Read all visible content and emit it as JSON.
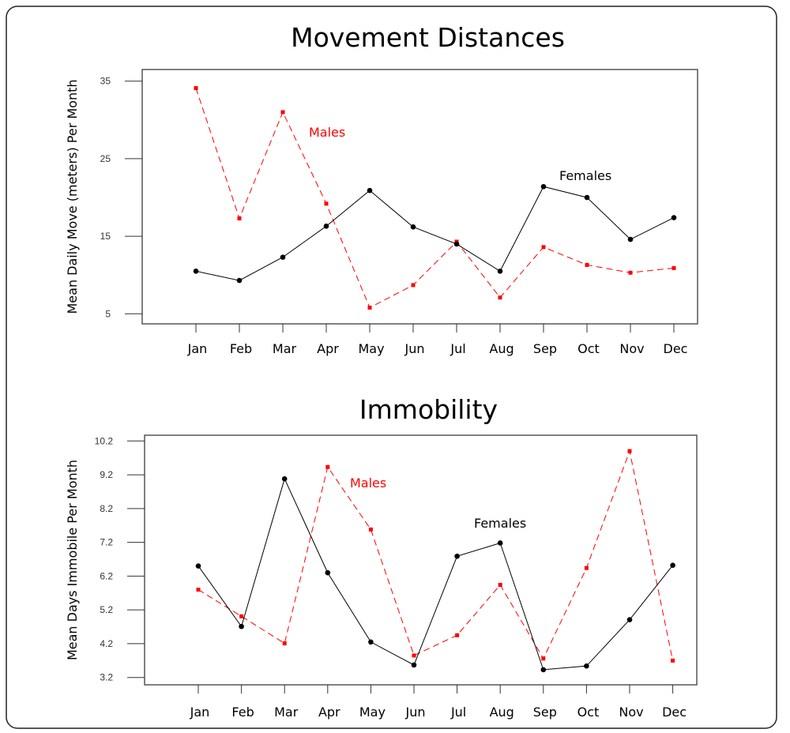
{
  "colors": {
    "females": "#000000",
    "males": "#ff0000",
    "frame": "#555555"
  },
  "chart_data": [
    {
      "type": "line",
      "title": "Movement Distances",
      "xlabel": "",
      "ylabel": "Mean Daily Move (meters) Per Month",
      "categories": [
        "Jan",
        "Feb",
        "Mar",
        "Apr",
        "May",
        "Jun",
        "Jul",
        "Aug",
        "Sep",
        "Oct",
        "Nov",
        "Dec"
      ],
      "yticks": [
        "5",
        "15",
        "25",
        "35"
      ],
      "ylim": [
        5,
        35
      ],
      "grid": false,
      "series": [
        {
          "name": "Females",
          "style": "solid",
          "marker": "circle",
          "values": [
            10.5,
            9.3,
            12.3,
            16.3,
            20.9,
            16.2,
            14.0,
            10.5,
            21.4,
            20.0,
            14.6,
            17.4
          ]
        },
        {
          "name": "Males",
          "style": "dashed",
          "marker": "square",
          "values": [
            34.1,
            17.3,
            31.0,
            19.2,
            5.8,
            8.7,
            14.3,
            7.1,
            13.6,
            11.3,
            10.3,
            10.9
          ]
        }
      ],
      "annotations": [
        {
          "text": "Males",
          "series": "Males"
        },
        {
          "text": "Females",
          "series": "Females"
        }
      ]
    },
    {
      "type": "line",
      "title": "Immobility",
      "xlabel": "",
      "ylabel": "Mean Days Immobile Per Month",
      "categories": [
        "Jan",
        "Feb",
        "Mar",
        "Apr",
        "May",
        "Jun",
        "Jul",
        "Aug",
        "Sep",
        "Oct",
        "Nov",
        "Dec"
      ],
      "yticks": [
        "3.2",
        "4.2",
        "5.2",
        "6.2",
        "7.2",
        "8.2",
        "9.2",
        "10.2"
      ],
      "ylim": [
        3.2,
        10.2
      ],
      "grid": false,
      "series": [
        {
          "name": "Females",
          "style": "solid",
          "marker": "circle",
          "values": [
            6.5,
            4.71,
            9.08,
            6.3,
            4.25,
            3.57,
            6.79,
            7.18,
            3.43,
            3.54,
            4.91,
            6.52
          ]
        },
        {
          "name": "Males",
          "style": "dashed",
          "marker": "square",
          "values": [
            5.8,
            5.01,
            4.21,
            9.43,
            7.58,
            3.85,
            4.45,
            5.94,
            3.76,
            6.44,
            9.9,
            3.7
          ]
        }
      ],
      "annotations": [
        {
          "text": "Males",
          "series": "Males"
        },
        {
          "text": "Females",
          "series": "Females"
        }
      ]
    }
  ]
}
